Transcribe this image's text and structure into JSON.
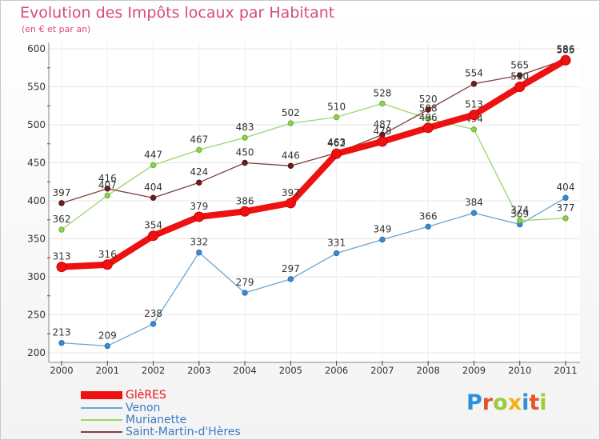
{
  "header": {
    "title": "Evolution des Impôts locaux par Habitant",
    "subtitle": "(en € et par an)"
  },
  "logo": {
    "text": "Proxiti",
    "letters": [
      "P",
      "r",
      "o",
      "x",
      "i",
      "t",
      "i"
    ],
    "colors": [
      "#2f8fd8",
      "#e2552b",
      "#9bcc3c",
      "#f2b21a",
      "#2f8fd8",
      "#e2552b",
      "#9bcc3c"
    ]
  },
  "chart_data": {
    "type": "line",
    "title": "Evolution des Impôts locaux par Habitant",
    "subtitle": "(en € et par an)",
    "xlabel": "",
    "ylabel": "",
    "ylim": [
      200,
      600
    ],
    "yticks": [
      "200",
      "250",
      "300",
      "350",
      "400",
      "450",
      "500",
      "550",
      "600"
    ],
    "categories": [
      "2000",
      "2001",
      "2002",
      "2003",
      "2004",
      "2005",
      "2006",
      "2007",
      "2008",
      "2009",
      "2010",
      "2011"
    ],
    "grid": true,
    "legend": "bottom-left",
    "series": [
      {
        "name": "GlèRES",
        "color": "#ee1111",
        "values": [
          313,
          316,
          354,
          379,
          386,
          397,
          462,
          478,
          496,
          513,
          550,
          585
        ],
        "labels": [
          "313",
          "316",
          "354",
          "379",
          "386",
          "397",
          "462",
          "478",
          "496",
          "513",
          "550",
          "585"
        ]
      },
      {
        "name": "Venon",
        "color": "#6aa5cf",
        "values": [
          213,
          209,
          238,
          332,
          279,
          297,
          331,
          349,
          366,
          384,
          369,
          404
        ],
        "labels": [
          "213",
          "209",
          "238",
          "332",
          "279",
          "297",
          "331",
          "349",
          "366",
          "384",
          "369",
          "404"
        ]
      },
      {
        "name": "Murianette",
        "color": "#99d66b",
        "values": [
          362,
          407,
          447,
          467,
          483,
          502,
          510,
          528,
          508,
          494,
          374,
          377
        ],
        "labels": [
          "362",
          "407",
          "447",
          "467",
          "483",
          "502",
          "510",
          "528",
          "508",
          "494",
          "374",
          "377"
        ]
      },
      {
        "name": "Saint-Martin-d'Hères",
        "color": "#7f3f3f",
        "values": [
          397,
          416,
          404,
          424,
          450,
          446,
          463,
          487,
          520,
          554,
          565,
          586
        ],
        "labels": [
          "397",
          "416",
          "404",
          "424",
          "450",
          "446",
          "463",
          "487",
          "520",
          "554",
          "565",
          "586"
        ]
      }
    ]
  }
}
